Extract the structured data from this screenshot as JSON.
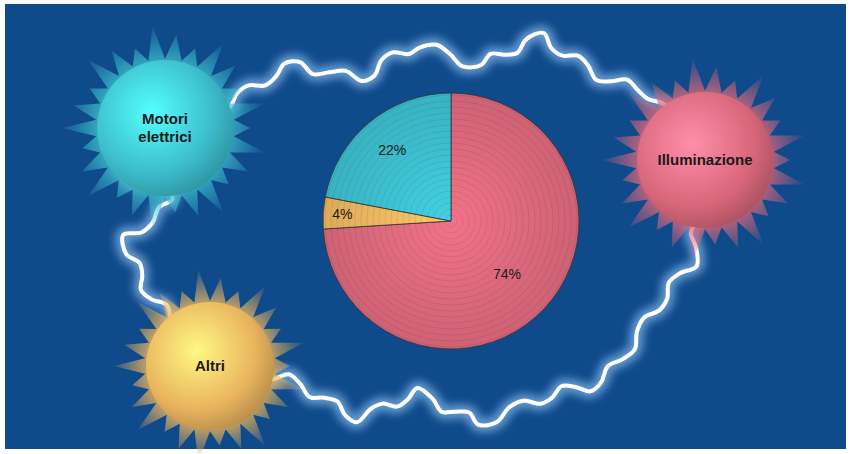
{
  "chart_data": {
    "type": "pie",
    "categories": [
      "Illuminazione",
      "Altri",
      "Motori elettrici"
    ],
    "values": [
      74,
      4,
      22
    ],
    "value_labels": [
      "74%",
      "4%",
      "22%"
    ],
    "colors": [
      "#d9677b",
      "#e9b45e",
      "#3cbccc"
    ],
    "data_labels": true
  }
}
